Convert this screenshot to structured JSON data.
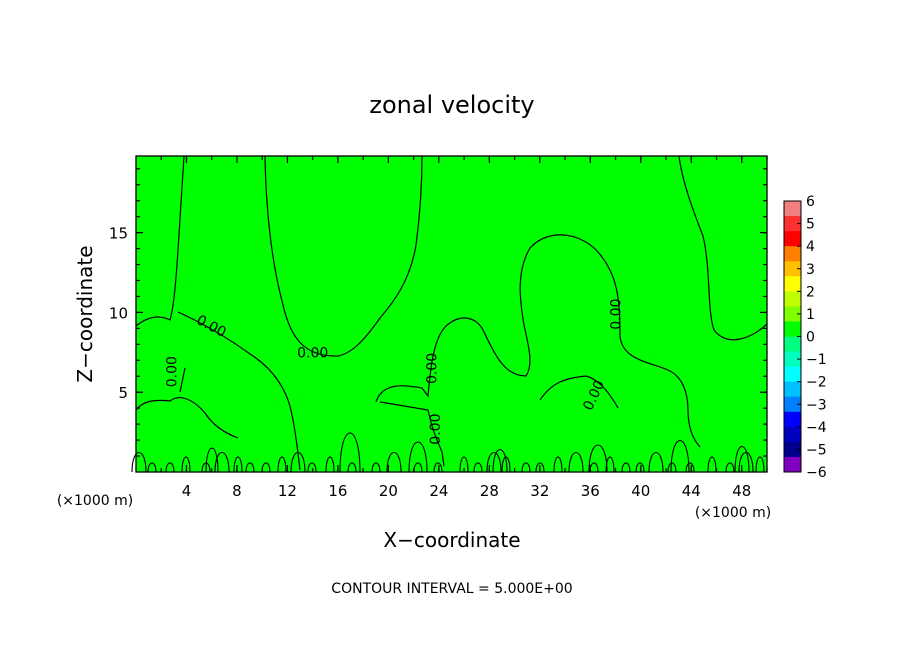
{
  "chart_data": {
    "type": "heatmap",
    "title": "zonal velocity",
    "xlabel": "X−coordinate",
    "ylabel": "Z−coordinate",
    "x_unit_left": "(×1000 m)",
    "x_unit_right": "(×1000 m)",
    "footnote": "CONTOUR INTERVAL = 5.000E+00",
    "xlim": [
      0,
      50
    ],
    "ylim": [
      0,
      19.8
    ],
    "x_ticks": [
      4,
      8,
      12,
      16,
      20,
      24,
      28,
      32,
      36,
      40,
      44,
      48
    ],
    "y_ticks": [
      5,
      10,
      15
    ],
    "field_value": 0,
    "fill_color": "#00ff00",
    "contour_labels": [
      {
        "text": "0.00",
        "x": 5.8,
        "z": 9.2,
        "angle": 28
      },
      {
        "text": "0.00",
        "x": 3.2,
        "z": 6.6,
        "angle": -90
      },
      {
        "text": "0.00",
        "x": 14.0,
        "z": 7.5,
        "angle": 0
      },
      {
        "text": "0.00",
        "x": 23.8,
        "z": 6.8,
        "angle": -90
      },
      {
        "text": "0.00",
        "x": 24.1,
        "z": 3.0,
        "angle": -90
      },
      {
        "text": "0.00",
        "x": 36.6,
        "z": 5.0,
        "angle": -65
      },
      {
        "text": "0.00",
        "x": 38.4,
        "z": 10.2,
        "angle": -90
      }
    ],
    "colorbar": {
      "ticks": [
        "6",
        "5",
        "4",
        "3",
        "2",
        "1",
        "0",
        "−1",
        "−2",
        "−3",
        "−4",
        "−5",
        "−6"
      ],
      "colors": [
        "#f08080",
        "#ff3030",
        "#ff0000",
        "#ff8000",
        "#ffc000",
        "#ffff00",
        "#c0ff00",
        "#80ff00",
        "#00ff00",
        "#00ff80",
        "#00ffc0",
        "#00ffff",
        "#00c0ff",
        "#0080ff",
        "#0000ff",
        "#0000c0",
        "#00008b",
        "#8000c0"
      ]
    }
  }
}
